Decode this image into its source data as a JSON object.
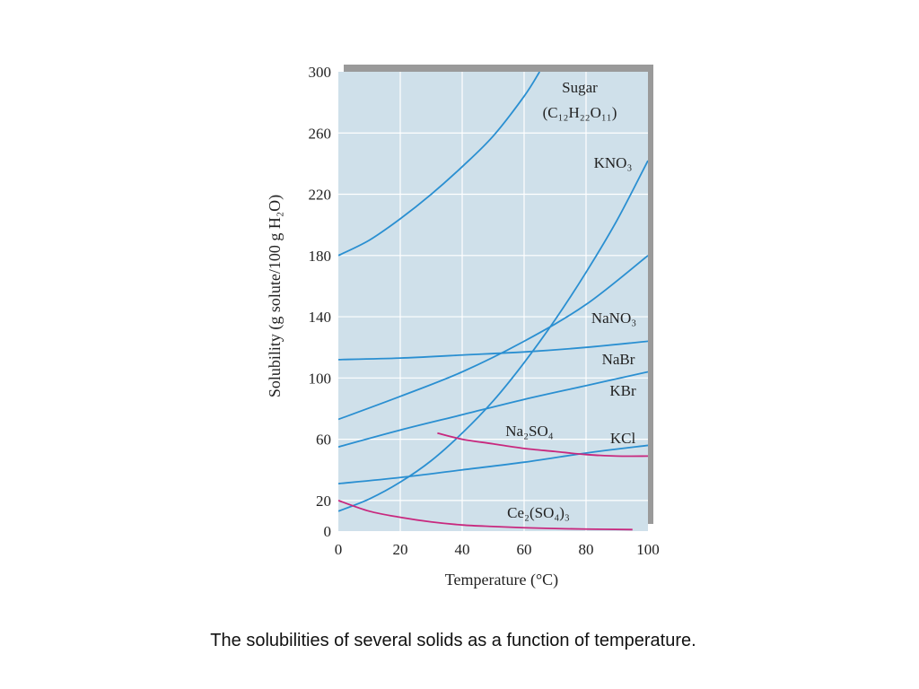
{
  "caption": "The solubilities of several solids as a function of temperature.",
  "colors": {
    "plot_bg": "#cfe0ea",
    "blue": "#2a8fd1",
    "magenta": "#c8287e",
    "grid": "#ffffff"
  },
  "chart_data": {
    "type": "line",
    "title": "",
    "xlabel": "Temperature (°C)",
    "ylabel": "Solubility (g solute/100 g H₂O)",
    "xlim": [
      0,
      100
    ],
    "ylim": [
      0,
      300
    ],
    "xticks": [
      0,
      20,
      40,
      60,
      80,
      100
    ],
    "yticks": [
      0,
      20,
      60,
      100,
      140,
      180,
      220,
      260,
      300
    ],
    "grid": true,
    "series": [
      {
        "name": "Sugar (C₁₂H₂₂O₁₁)",
        "label": "Sugar",
        "label2": "(C₁₂H₂₂O₁₁)",
        "color": "blue",
        "x": [
          0,
          10,
          20,
          30,
          40,
          50,
          60,
          65
        ],
        "y": [
          180,
          190,
          204,
          220,
          238,
          258,
          284,
          300
        ]
      },
      {
        "name": "KNO₃",
        "label": "KNO₃",
        "color": "blue",
        "x": [
          0,
          10,
          20,
          30,
          40,
          50,
          60,
          70,
          80,
          90,
          100
        ],
        "y": [
          13,
          21,
          32,
          46,
          64,
          85,
          110,
          138,
          169,
          203,
          242
        ]
      },
      {
        "name": "NaNO₃",
        "label": "NaNO₃",
        "color": "blue",
        "x": [
          0,
          20,
          40,
          60,
          80,
          100
        ],
        "y": [
          73,
          88,
          104,
          124,
          148,
          180
        ]
      },
      {
        "name": "NaBr",
        "label": "NaBr",
        "color": "blue",
        "x": [
          0,
          20,
          40,
          60,
          80,
          100
        ],
        "y": [
          112,
          113,
          115,
          117,
          120,
          124
        ]
      },
      {
        "name": "KBr",
        "label": "KBr",
        "color": "blue",
        "x": [
          0,
          20,
          40,
          60,
          80,
          100
        ],
        "y": [
          55,
          66,
          76,
          86,
          95,
          104
        ]
      },
      {
        "name": "KCl",
        "label": "KCl",
        "color": "blue",
        "x": [
          0,
          20,
          40,
          60,
          80,
          100
        ],
        "y": [
          31,
          35,
          40,
          45,
          51,
          56
        ]
      },
      {
        "name": "Na₂SO₄",
        "label": "Na₂SO₄",
        "color": "magenta",
        "x": [
          32,
          40,
          50,
          60,
          70,
          80,
          90,
          100
        ],
        "y": [
          64,
          60,
          57,
          54,
          52,
          50,
          49,
          49
        ]
      },
      {
        "name": "Ce₂(SO₄)₃",
        "label": "Ce₂(SO₄)₃",
        "color": "magenta",
        "x": [
          0,
          10,
          20,
          30,
          40,
          50,
          60,
          70,
          80,
          95
        ],
        "y": [
          20,
          13,
          9,
          6,
          4,
          3,
          2.2,
          1.7,
          1.3,
          1
        ]
      }
    ]
  }
}
